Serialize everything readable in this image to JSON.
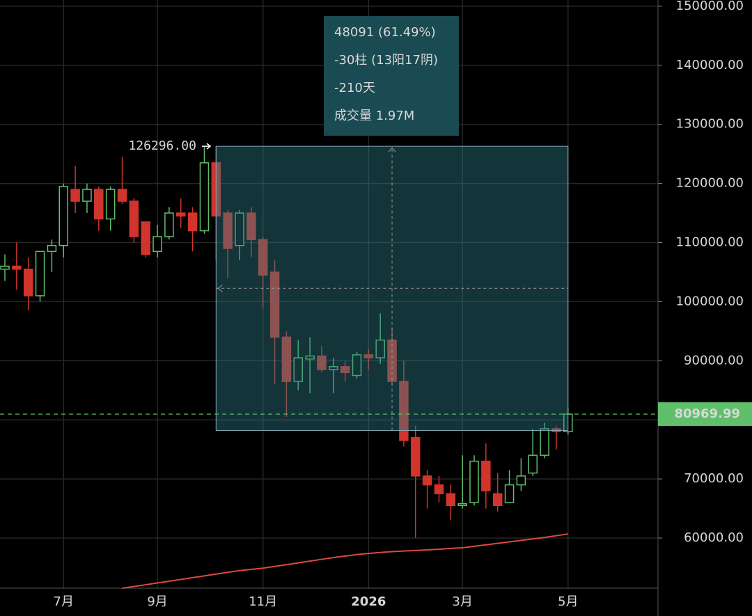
{
  "chart_data": {
    "type": "candlestick",
    "categories": [
      null,
      null,
      null,
      null,
      null,
      "7月",
      null,
      null,
      null,
      null,
      null,
      null,
      null,
      "9月",
      null,
      null,
      null,
      null,
      null,
      null,
      null,
      null,
      "11月",
      null,
      null,
      null,
      null,
      null,
      null,
      null,
      null,
      "2026",
      null,
      null,
      null,
      null,
      null,
      null,
      null,
      "3月",
      null,
      null,
      null,
      null,
      null,
      null,
      null,
      null,
      "5月"
    ],
    "open": [
      105500,
      106000,
      105500,
      101000,
      108500,
      109500,
      119000,
      117000,
      119000,
      114000,
      119000,
      117000,
      113500,
      108500,
      111000,
      115000,
      115000,
      112000,
      123500,
      115000,
      109500,
      115000,
      110500,
      105000,
      94000,
      86500,
      90300,
      90800,
      88500,
      89000,
      87500,
      91000,
      90500,
      93500,
      86500,
      77000,
      70500,
      69000,
      67500,
      65500,
      66000,
      73000,
      67500,
      66000,
      69000,
      71000,
      74000,
      78500,
      78000
    ],
    "high": [
      108000,
      110000,
      107500,
      108500,
      110500,
      120000,
      123000,
      120000,
      119500,
      119500,
      124500,
      117500,
      113500,
      113000,
      116000,
      117500,
      116000,
      126296,
      126296,
      115500,
      115500,
      116000,
      111000,
      107000,
      95000,
      93500,
      94000,
      92500,
      90500,
      90000,
      91500,
      92000,
      98000,
      95500,
      90000,
      79000,
      71500,
      70500,
      69000,
      74000,
      74000,
      76000,
      71000,
      71500,
      73500,
      78500,
      79500,
      79000,
      82000
    ],
    "low": [
      103500,
      102000,
      98500,
      100000,
      105000,
      107500,
      115000,
      115000,
      112000,
      112000,
      116500,
      110000,
      107500,
      107500,
      110500,
      112500,
      108500,
      111500,
      107000,
      104000,
      107000,
      107500,
      99000,
      86000,
      80500,
      85000,
      84500,
      88000,
      84500,
      86500,
      87000,
      88500,
      89500,
      86000,
      75500,
      60000,
      65000,
      66000,
      63000,
      65000,
      65500,
      65000,
      64500,
      66000,
      68000,
      70500,
      73500,
      75000,
      77500
    ],
    "close": [
      106000,
      105500,
      101000,
      108500,
      109500,
      119500,
      117000,
      119000,
      114000,
      119000,
      117000,
      111000,
      108000,
      111000,
      115000,
      114500,
      112000,
      123500,
      114500,
      109000,
      115000,
      110500,
      104500,
      94000,
      86500,
      90500,
      90800,
      88500,
      89000,
      88000,
      91000,
      90500,
      93500,
      86500,
      76500,
      70500,
      69000,
      67500,
      65500,
      65800,
      73000,
      68000,
      65500,
      69000,
      70500,
      74000,
      78500,
      78000,
      80969.99
    ],
    "up_color": "#5fbf6b",
    "down_color": "#d0342c",
    "ma": {
      "color": "#d94a3f",
      "values": [
        null,
        null,
        null,
        null,
        null,
        null,
        null,
        null,
        null,
        null,
        51500,
        51800,
        52100,
        52400,
        52700,
        53000,
        53300,
        53600,
        53900,
        54200,
        54500,
        54700,
        54900,
        55200,
        55500,
        55800,
        56100,
        56400,
        56700,
        56950,
        57200,
        57400,
        57550,
        57700,
        57800,
        57900,
        58000,
        58100,
        58250,
        58350,
        58600,
        58850,
        59100,
        59350,
        59600,
        59850,
        60100,
        60400,
        60700
      ]
    },
    "ylim": [
      54000,
      151000
    ],
    "yticks": [
      {
        "value": 60000,
        "label": "60000.00"
      },
      {
        "value": 70000,
        "label": "70000.00"
      },
      {
        "value": 80000,
        "label": "80000.00"
      },
      {
        "value": 90000,
        "label": "90000.00"
      },
      {
        "value": 100000,
        "label": "100000.00"
      },
      {
        "value": 110000,
        "label": "110000.00"
      },
      {
        "value": 120000,
        "label": "120000.00"
      },
      {
        "value": 130000,
        "label": "130000.00"
      },
      {
        "value": 140000,
        "label": "140000.00"
      },
      {
        "value": 150000,
        "label": "150000.00"
      }
    ],
    "last_price": 80969.99,
    "peak": {
      "value": 126296,
      "label": "126296.00"
    },
    "measure": {
      "x_range": [
        18,
        48
      ],
      "high": 126296,
      "low": 78205,
      "lines": [
        "48091 (61.49%)",
        "-30柱 (13阳17阴)",
        "-210天",
        "成交量 1.97M"
      ]
    }
  }
}
